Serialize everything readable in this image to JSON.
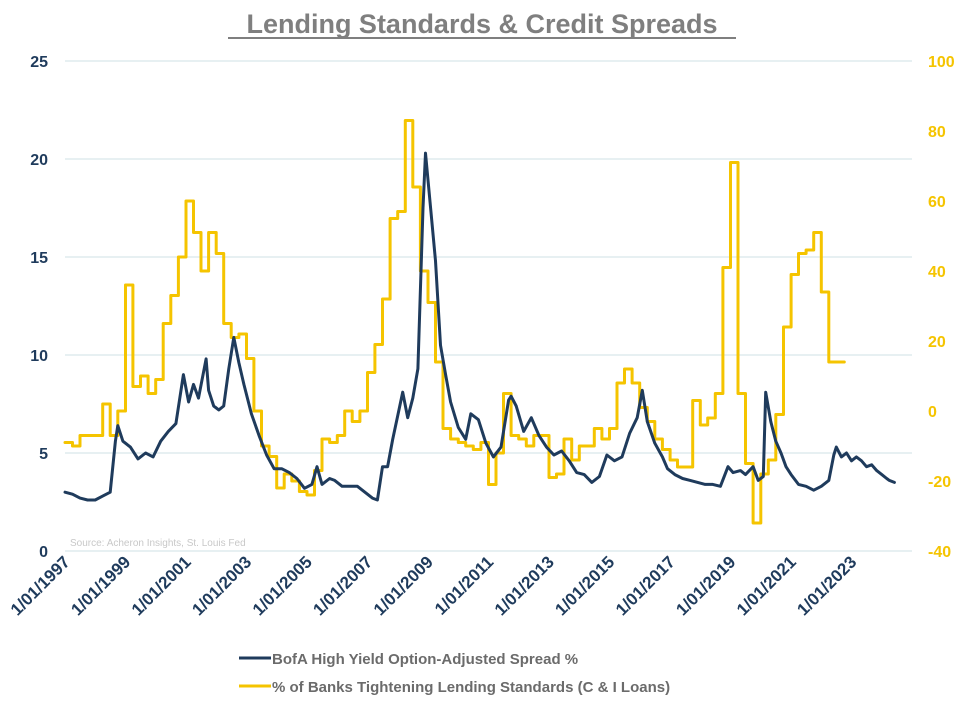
{
  "chart_data": {
    "type": "line",
    "title": "Lending Standards & Credit Spreads",
    "source": "Source: Acheron Insights, St. Louis Fed",
    "x_tick_labels": [
      "1/01/1997",
      "1/01/1999",
      "1/01/2001",
      "1/01/2003",
      "1/01/2005",
      "1/01/2007",
      "1/01/2009",
      "1/01/2011",
      "1/01/2013",
      "1/01/2015",
      "1/01/2017",
      "1/01/2019",
      "1/01/2021",
      "1/01/2023"
    ],
    "x_range": [
      "1997-01-01",
      "2024-12-31"
    ],
    "y_left": {
      "range": [
        0,
        25
      ],
      "ticks": [
        0,
        5,
        10,
        15,
        20,
        25
      ]
    },
    "y_right": {
      "range": [
        -40,
        100
      ],
      "ticks": [
        -40,
        -20,
        0,
        20,
        40,
        60,
        80,
        100
      ]
    },
    "grid": "horizontal",
    "legend_position": "bottom",
    "colors": {
      "spread": "#1f3b5c",
      "lending": "#f5c400"
    },
    "series": [
      {
        "name": "BofA High Yield Option-Adjusted Spread %",
        "axis": "left",
        "color": "#1f3b5c",
        "points": [
          [
            "1997-01-01",
            3.0
          ],
          [
            "1997-04-01",
            2.9
          ],
          [
            "1997-07-01",
            2.7
          ],
          [
            "1997-10-01",
            2.6
          ],
          [
            "1998-01-01",
            2.6
          ],
          [
            "1998-04-01",
            2.8
          ],
          [
            "1998-07-01",
            3.0
          ],
          [
            "1998-09-01",
            5.6
          ],
          [
            "1998-10-01",
            6.4
          ],
          [
            "1998-12-01",
            5.6
          ],
          [
            "1999-03-01",
            5.3
          ],
          [
            "1999-06-01",
            4.7
          ],
          [
            "1999-09-01",
            5.0
          ],
          [
            "1999-12-01",
            4.8
          ],
          [
            "2000-03-01",
            5.6
          ],
          [
            "2000-06-01",
            6.1
          ],
          [
            "2000-09-01",
            6.5
          ],
          [
            "2000-12-01",
            9.0
          ],
          [
            "2001-02-01",
            7.6
          ],
          [
            "2001-04-01",
            8.5
          ],
          [
            "2001-06-01",
            7.8
          ],
          [
            "2001-09-01",
            9.8
          ],
          [
            "2001-10-01",
            8.2
          ],
          [
            "2001-12-01",
            7.4
          ],
          [
            "2002-02-01",
            7.2
          ],
          [
            "2002-04-01",
            7.4
          ],
          [
            "2002-06-01",
            9.3
          ],
          [
            "2002-08-01",
            10.9
          ],
          [
            "2002-10-01",
            9.6
          ],
          [
            "2002-12-01",
            8.5
          ],
          [
            "2003-03-01",
            7.0
          ],
          [
            "2003-06-01",
            5.9
          ],
          [
            "2003-09-01",
            4.9
          ],
          [
            "2003-12-01",
            4.2
          ],
          [
            "2004-03-01",
            4.2
          ],
          [
            "2004-06-01",
            4.0
          ],
          [
            "2004-09-01",
            3.7
          ],
          [
            "2004-12-01",
            3.2
          ],
          [
            "2005-03-01",
            3.4
          ],
          [
            "2005-05-01",
            4.3
          ],
          [
            "2005-07-01",
            3.4
          ],
          [
            "2005-10-01",
            3.7
          ],
          [
            "2005-12-01",
            3.6
          ],
          [
            "2006-03-01",
            3.3
          ],
          [
            "2006-06-01",
            3.3
          ],
          [
            "2006-09-01",
            3.3
          ],
          [
            "2006-12-01",
            3.0
          ],
          [
            "2007-03-01",
            2.7
          ],
          [
            "2007-05-01",
            2.6
          ],
          [
            "2007-07-01",
            4.3
          ],
          [
            "2007-09-01",
            4.3
          ],
          [
            "2007-11-01",
            5.7
          ],
          [
            "2008-01-01",
            6.9
          ],
          [
            "2008-03-01",
            8.1
          ],
          [
            "2008-05-01",
            6.8
          ],
          [
            "2008-07-01",
            7.8
          ],
          [
            "2008-09-01",
            9.3
          ],
          [
            "2008-11-01",
            17.5
          ],
          [
            "2008-12-01",
            20.3
          ],
          [
            "2009-02-01",
            17.5
          ],
          [
            "2009-04-01",
            14.8
          ],
          [
            "2009-06-01",
            10.5
          ],
          [
            "2009-08-01",
            9.0
          ],
          [
            "2009-10-01",
            7.6
          ],
          [
            "2010-01-01",
            6.3
          ],
          [
            "2010-04-01",
            5.7
          ],
          [
            "2010-06-01",
            7.0
          ],
          [
            "2010-09-01",
            6.7
          ],
          [
            "2010-12-01",
            5.5
          ],
          [
            "2011-03-01",
            4.8
          ],
          [
            "2011-06-01",
            5.3
          ],
          [
            "2011-09-01",
            7.7
          ],
          [
            "2011-10-01",
            7.9
          ],
          [
            "2011-12-01",
            7.4
          ],
          [
            "2012-03-01",
            6.1
          ],
          [
            "2012-06-01",
            6.8
          ],
          [
            "2012-09-01",
            5.9
          ],
          [
            "2012-12-01",
            5.3
          ],
          [
            "2013-03-01",
            4.9
          ],
          [
            "2013-06-01",
            5.1
          ],
          [
            "2013-09-01",
            4.6
          ],
          [
            "2013-12-01",
            4.0
          ],
          [
            "2014-03-01",
            3.9
          ],
          [
            "2014-06-01",
            3.5
          ],
          [
            "2014-09-01",
            3.8
          ],
          [
            "2014-12-01",
            4.9
          ],
          [
            "2015-03-01",
            4.6
          ],
          [
            "2015-06-01",
            4.8
          ],
          [
            "2015-09-01",
            6.0
          ],
          [
            "2015-12-01",
            6.8
          ],
          [
            "2016-02-01",
            8.2
          ],
          [
            "2016-04-01",
            6.6
          ],
          [
            "2016-07-01",
            5.5
          ],
          [
            "2016-10-01",
            4.8
          ],
          [
            "2016-12-01",
            4.2
          ],
          [
            "2017-03-01",
            3.9
          ],
          [
            "2017-06-01",
            3.7
          ],
          [
            "2017-09-01",
            3.6
          ],
          [
            "2017-12-01",
            3.5
          ],
          [
            "2018-03-01",
            3.4
          ],
          [
            "2018-06-01",
            3.4
          ],
          [
            "2018-09-01",
            3.3
          ],
          [
            "2018-12-01",
            4.3
          ],
          [
            "2019-02-01",
            4.0
          ],
          [
            "2019-05-01",
            4.1
          ],
          [
            "2019-07-01",
            3.9
          ],
          [
            "2019-10-01",
            4.3
          ],
          [
            "2019-12-01",
            3.6
          ],
          [
            "2020-02-01",
            3.8
          ],
          [
            "2020-03-01",
            8.1
          ],
          [
            "2020-05-01",
            6.6
          ],
          [
            "2020-07-01",
            5.6
          ],
          [
            "2020-09-01",
            5.0
          ],
          [
            "2020-11-01",
            4.3
          ],
          [
            "2021-01-01",
            3.9
          ],
          [
            "2021-04-01",
            3.4
          ],
          [
            "2021-07-01",
            3.3
          ],
          [
            "2021-10-01",
            3.1
          ],
          [
            "2022-01-01",
            3.3
          ],
          [
            "2022-04-01",
            3.6
          ],
          [
            "2022-06-01",
            4.9
          ],
          [
            "2022-07-01",
            5.3
          ],
          [
            "2022-09-01",
            4.8
          ],
          [
            "2022-11-01",
            5.0
          ],
          [
            "2023-01-01",
            4.6
          ],
          [
            "2023-03-01",
            4.8
          ],
          [
            "2023-05-01",
            4.6
          ],
          [
            "2023-07-01",
            4.3
          ],
          [
            "2023-09-01",
            4.4
          ],
          [
            "2023-11-01",
            4.1
          ],
          [
            "2024-01-01",
            3.9
          ],
          [
            "2024-03-01",
            3.7
          ],
          [
            "2024-04-01",
            3.6
          ],
          [
            "2024-06-01",
            3.5
          ]
        ]
      },
      {
        "name": "% of Banks Tightening Lending Standards (C & I Loans)",
        "axis": "right",
        "color": "#f5c400",
        "step": true,
        "points": [
          [
            "1997-01-01",
            -9
          ],
          [
            "1997-04-01",
            -10
          ],
          [
            "1997-07-01",
            -7
          ],
          [
            "1997-10-01",
            -7
          ],
          [
            "1998-01-01",
            -7
          ],
          [
            "1998-04-01",
            2
          ],
          [
            "1998-07-01",
            -7
          ],
          [
            "1998-10-01",
            0
          ],
          [
            "1999-01-01",
            36
          ],
          [
            "1999-04-01",
            7
          ],
          [
            "1999-07-01",
            10
          ],
          [
            "1999-10-01",
            5
          ],
          [
            "2000-01-01",
            9
          ],
          [
            "2000-04-01",
            25
          ],
          [
            "2000-07-01",
            33
          ],
          [
            "2000-10-01",
            44
          ],
          [
            "2001-01-01",
            60
          ],
          [
            "2001-04-01",
            51
          ],
          [
            "2001-07-01",
            40
          ],
          [
            "2001-10-01",
            51
          ],
          [
            "2002-01-01",
            45
          ],
          [
            "2002-04-01",
            25
          ],
          [
            "2002-07-01",
            21
          ],
          [
            "2002-10-01",
            22
          ],
          [
            "2003-01-01",
            15
          ],
          [
            "2003-04-01",
            0
          ],
          [
            "2003-07-01",
            -10
          ],
          [
            "2003-10-01",
            -13
          ],
          [
            "2004-01-01",
            -22
          ],
          [
            "2004-04-01",
            -18
          ],
          [
            "2004-07-01",
            -20
          ],
          [
            "2004-10-01",
            -23
          ],
          [
            "2005-01-01",
            -24
          ],
          [
            "2005-04-01",
            -17
          ],
          [
            "2005-07-01",
            -8
          ],
          [
            "2005-10-01",
            -9
          ],
          [
            "2006-01-01",
            -7
          ],
          [
            "2006-04-01",
            0
          ],
          [
            "2006-07-01",
            -3
          ],
          [
            "2006-10-01",
            0
          ],
          [
            "2007-01-01",
            11
          ],
          [
            "2007-04-01",
            19
          ],
          [
            "2007-07-01",
            32
          ],
          [
            "2007-10-01",
            55
          ],
          [
            "2008-01-01",
            57
          ],
          [
            "2008-04-01",
            83
          ],
          [
            "2008-07-01",
            64
          ],
          [
            "2008-10-01",
            40
          ],
          [
            "2009-01-01",
            31
          ],
          [
            "2009-04-01",
            14
          ],
          [
            "2009-07-01",
            -5
          ],
          [
            "2009-10-01",
            -8
          ],
          [
            "2010-01-01",
            -9
          ],
          [
            "2010-04-01",
            -10
          ],
          [
            "2010-07-01",
            -11
          ],
          [
            "2010-10-01",
            -9
          ],
          [
            "2011-01-01",
            -21
          ],
          [
            "2011-04-01",
            -12
          ],
          [
            "2011-07-01",
            5
          ],
          [
            "2011-10-01",
            -7
          ],
          [
            "2012-01-01",
            -8
          ],
          [
            "2012-04-01",
            -10
          ],
          [
            "2012-07-01",
            -7
          ],
          [
            "2012-10-01",
            -7
          ],
          [
            "2013-01-01",
            -19
          ],
          [
            "2013-04-01",
            -18
          ],
          [
            "2013-07-01",
            -8
          ],
          [
            "2013-10-01",
            -14
          ],
          [
            "2014-01-01",
            -10
          ],
          [
            "2014-04-01",
            -10
          ],
          [
            "2014-07-01",
            -5
          ],
          [
            "2014-10-01",
            -8
          ],
          [
            "2015-01-01",
            -5
          ],
          [
            "2015-04-01",
            8
          ],
          [
            "2015-07-01",
            12
          ],
          [
            "2015-10-01",
            8
          ],
          [
            "2016-01-01",
            1
          ],
          [
            "2016-04-01",
            -3
          ],
          [
            "2016-07-01",
            -8
          ],
          [
            "2016-10-01",
            -11
          ],
          [
            "2017-01-01",
            -14
          ],
          [
            "2017-04-01",
            -16
          ],
          [
            "2017-07-01",
            -16
          ],
          [
            "2017-10-01",
            3
          ],
          [
            "2018-01-01",
            -4
          ],
          [
            "2018-04-01",
            -2
          ],
          [
            "2018-07-01",
            5
          ],
          [
            "2018-10-01",
            41
          ],
          [
            "2019-01-01",
            71
          ],
          [
            "2019-04-01",
            5
          ],
          [
            "2019-07-01",
            -15
          ],
          [
            "2019-10-01",
            -32
          ],
          [
            "2020-01-01",
            -18
          ],
          [
            "2020-04-01",
            -14
          ],
          [
            "2020-07-01",
            -1
          ],
          [
            "2020-10-01",
            24
          ],
          [
            "2021-01-01",
            39
          ],
          [
            "2021-04-01",
            45
          ],
          [
            "2021-07-01",
            46
          ],
          [
            "2021-10-01",
            51
          ],
          [
            "2022-01-01",
            34
          ],
          [
            "2022-04-01",
            14
          ],
          [
            "2022-07-01",
            14
          ]
        ]
      }
    ]
  }
}
